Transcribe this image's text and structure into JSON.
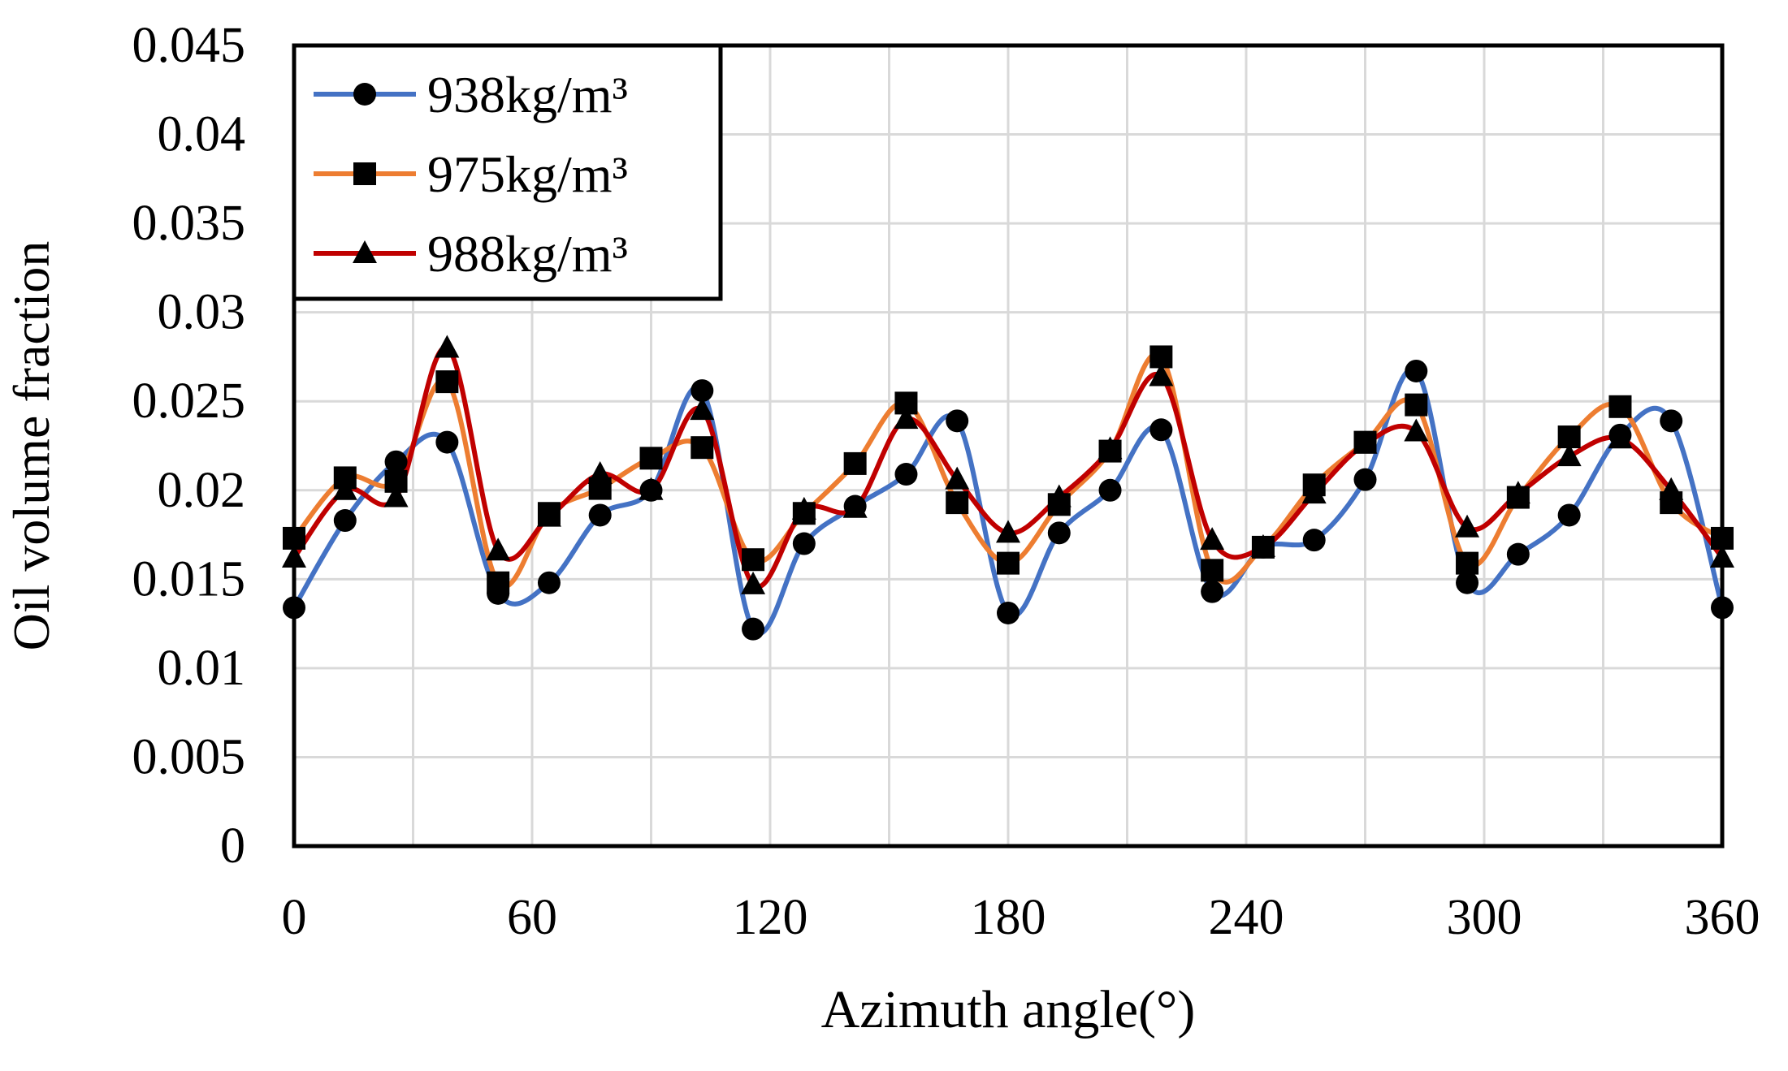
{
  "chart_data": {
    "type": "line",
    "x_label": "Azimuth angle(°)",
    "y_label": "Oil volume fraction",
    "x": [
      0,
      12.86,
      25.71,
      38.57,
      51.43,
      64.29,
      77.14,
      90,
      102.86,
      115.71,
      128.57,
      141.43,
      154.29,
      167.14,
      180,
      192.86,
      205.71,
      218.57,
      231.43,
      244.29,
      257.14,
      270,
      282.86,
      295.71,
      308.57,
      321.43,
      334.29,
      347.14,
      360
    ],
    "series": [
      {
        "name": "938kg/m³",
        "color": "#4472c4",
        "marker": "circle",
        "values": [
          0.0134,
          0.0183,
          0.0216,
          0.0227,
          0.0142,
          0.0148,
          0.0186,
          0.02,
          0.0256,
          0.0122,
          0.017,
          0.0191,
          0.0209,
          0.0239,
          0.0131,
          0.0176,
          0.02,
          0.0234,
          0.0143,
          0.0168,
          0.0172,
          0.0206,
          0.0267,
          0.0148,
          0.0164,
          0.0186,
          0.0231,
          0.0239,
          0.0134
        ]
      },
      {
        "name": "975kg/m³",
        "color": "#ed7d31",
        "marker": "square",
        "values": [
          0.0173,
          0.0207,
          0.0205,
          0.0261,
          0.0148,
          0.0187,
          0.0201,
          0.0218,
          0.0224,
          0.0161,
          0.0187,
          0.0215,
          0.0249,
          0.0193,
          0.0159,
          0.0192,
          0.0222,
          0.0275,
          0.0155,
          0.0168,
          0.0203,
          0.0227,
          0.0248,
          0.0159,
          0.0196,
          0.023,
          0.0247,
          0.0193,
          0.0173
        ]
      },
      {
        "name": "988kg/m³",
        "color": "#c00000",
        "marker": "triangle",
        "values": [
          0.0162,
          0.02,
          0.0196,
          0.028,
          0.0166,
          0.0185,
          0.0209,
          0.02,
          0.0245,
          0.0147,
          0.0189,
          0.019,
          0.024,
          0.0206,
          0.0176,
          0.0196,
          0.0223,
          0.0264,
          0.0172,
          0.0168,
          0.0198,
          0.0226,
          0.0233,
          0.0179,
          0.0198,
          0.0219,
          0.0229,
          0.02,
          0.0162
        ]
      }
    ],
    "xlim": [
      0,
      360
    ],
    "xticks": [
      0,
      60,
      120,
      180,
      240,
      300,
      360
    ],
    "xgrid": [
      0,
      30,
      60,
      90,
      120,
      150,
      180,
      210,
      240,
      270,
      300,
      330,
      360
    ],
    "ylim": [
      0,
      0.045
    ],
    "yticks": [
      0,
      0.005,
      0.01,
      0.015,
      0.02,
      0.025,
      0.03,
      0.035,
      0.04,
      0.045
    ],
    "grid": true,
    "legend": "upper left"
  }
}
